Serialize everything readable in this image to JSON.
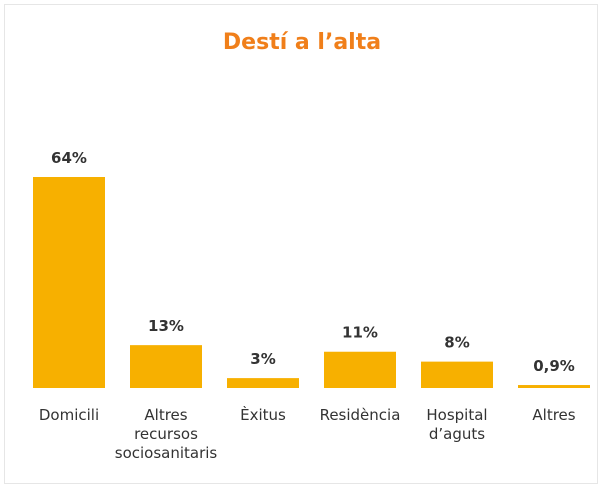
{
  "chart_data": {
    "type": "bar",
    "title": "Destí a l’alta",
    "categories": [
      "Domicili",
      "Altres recursos sociosanitaris",
      "Èxitus",
      "Residència",
      "Hospital d’aguts",
      "Altres"
    ],
    "values": [
      64,
      13,
      3,
      11,
      8,
      0.9
    ],
    "value_labels": [
      "64%",
      "13%",
      "3%",
      "11%",
      "8%",
      "0,9%"
    ],
    "color": "#f7b000"
  }
}
